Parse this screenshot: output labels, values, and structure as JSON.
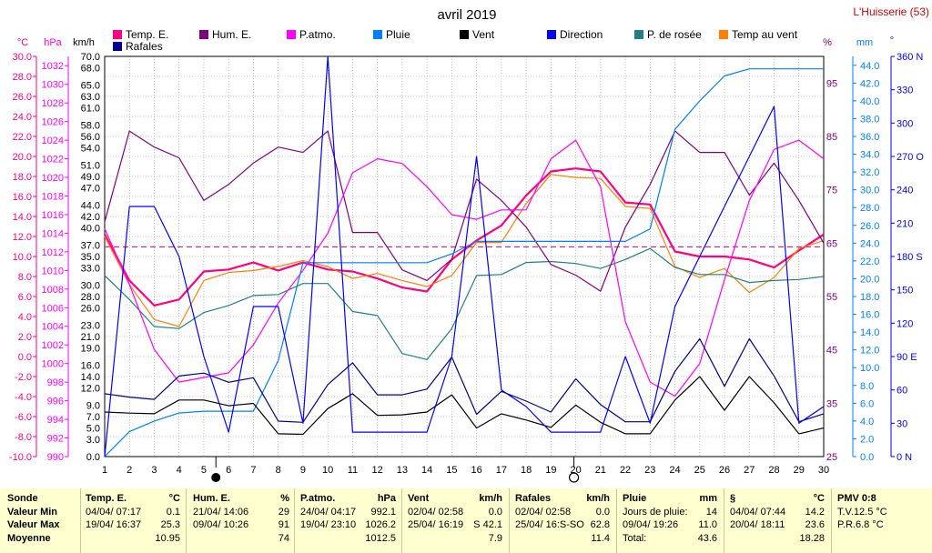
{
  "header": {
    "title": "avril 2019",
    "station": "L'Huisserie (53)"
  },
  "axes": {
    "temp_unit": "°C",
    "hpa_unit": "hPa",
    "kmh_unit": "km/h",
    "hum_unit": "%",
    "mm_unit": "mm",
    "deg_unit": "°",
    "temp_ticks": [
      "30.0",
      "28.0",
      "26.0",
      "24.0",
      "22.0",
      "20.0",
      "18.0",
      "16.0",
      "14.0",
      "12.0",
      "10.0",
      "8.0",
      "6.0",
      "4.0",
      "2.0",
      "0.0",
      "-2.0",
      "-4.0",
      "-6.0",
      "-8.0",
      "-10.0"
    ],
    "hpa_ticks": [
      "1032",
      "1030",
      "1028",
      "1026",
      "1024",
      "1022",
      "1020",
      "1018",
      "1016",
      "1014",
      "1012",
      "1010",
      "1008",
      "1006",
      "1004",
      "1002",
      "1000",
      "998",
      "996",
      "994",
      "992",
      "990"
    ],
    "kmh_ticks": [
      "70.0",
      "68.0",
      "65.0",
      "63.0",
      "61.0",
      "58.0",
      "56.0",
      "54.0",
      "51.0",
      "49.0",
      "47.0",
      "44.0",
      "42.0",
      "40.0",
      "37.0",
      "35.0",
      "33.0",
      "30.0",
      "28.0",
      "26.0",
      "23.0",
      "21.0",
      "19.0",
      "16.0",
      "14.0",
      "12.0",
      "9.0",
      "7.0",
      "5.0",
      "3.0",
      "0.0"
    ],
    "hum_ticks": [
      "95",
      "85",
      "75",
      "65",
      "55",
      "45",
      "35",
      "25"
    ],
    "mm_ticks": [
      "44.0",
      "42.0",
      "40.0",
      "38.0",
      "36.0",
      "34.0",
      "32.0",
      "30.0",
      "28.0",
      "26.0",
      "24.0",
      "22.0",
      "20.0",
      "18.0",
      "16.0",
      "14.0",
      "12.0",
      "10.0",
      "8.0",
      "6.0",
      "4.0",
      "2.0",
      "0.0"
    ],
    "dir_ticks": [
      "360 N",
      "330",
      "300",
      "270 O",
      "240",
      "210",
      "180 S",
      "150",
      "120",
      "90 E",
      "60",
      "30",
      "0 N"
    ],
    "x_ticks": [
      "1",
      "2",
      "3",
      "4",
      "5",
      "6",
      "7",
      "8",
      "9",
      "10",
      "11",
      "12",
      "13",
      "14",
      "15",
      "16",
      "17",
      "18",
      "19",
      "20",
      "21",
      "22",
      "23",
      "24",
      "25",
      "26",
      "27",
      "28",
      "29",
      "30"
    ]
  },
  "moon_phases": {
    "new_moon_day": 6,
    "full_moon_day": 20
  },
  "colors": {
    "temp": "#ff0080",
    "hum": "#800080",
    "patmo": "#ff00ff",
    "pluie": "#0080ff",
    "vent": "#000000",
    "direction": "#0000ff",
    "rosee": "#208080",
    "tempvent": "#ff8000",
    "rafales": "#000090",
    "mean": "#ff0080"
  },
  "chart_data": {
    "type": "line",
    "title": "avril 2019",
    "x": [
      1,
      2,
      3,
      4,
      5,
      6,
      7,
      8,
      9,
      10,
      11,
      12,
      13,
      14,
      15,
      16,
      17,
      18,
      19,
      20,
      21,
      22,
      23,
      24,
      25,
      26,
      27,
      28,
      29,
      30
    ],
    "xlim": [
      1,
      30
    ],
    "ylim_temp": [
      -10,
      30
    ],
    "ylim_hpa": [
      990,
      1033
    ],
    "ylim_kmh": [
      0,
      70
    ],
    "ylim_hum": [
      25,
      100
    ],
    "ylim_mm": [
      0,
      45
    ],
    "ylim_dir": [
      0,
      360
    ],
    "mean_temp_line": 10.95,
    "legend": [
      {
        "key": "temp",
        "name": "Temp. E."
      },
      {
        "key": "hum",
        "name": "Hum. E."
      },
      {
        "key": "patmo",
        "name": "P.atmo."
      },
      {
        "key": "pluie",
        "name": "Pluie"
      },
      {
        "key": "vent",
        "name": "Vent"
      },
      {
        "key": "direction",
        "name": "Direction"
      },
      {
        "key": "rosee",
        "name": "P. de rosée"
      },
      {
        "key": "tempvent",
        "name": "Temp au vent"
      },
      {
        "key": "rafales",
        "name": "Rafales"
      }
    ],
    "series": [
      {
        "key": "temp",
        "axis": "temp",
        "width": 2.2,
        "values": [
          12.2,
          7.6,
          5.1,
          5.7,
          8.5,
          8.7,
          9.4,
          8.6,
          9.4,
          8.7,
          8.5,
          7.8,
          6.9,
          6.5,
          9.7,
          11.6,
          13.1,
          16.1,
          18.5,
          18.8,
          18.5,
          15.4,
          15.2,
          10.5,
          10.0,
          10.0,
          9.7,
          8.9,
          10.6,
          12.2
        ]
      },
      {
        "key": "tempvent",
        "axis": "temp",
        "width": 1.2,
        "values": [
          12.0,
          7.2,
          3.7,
          3.0,
          7.6,
          8.4,
          8.6,
          9.0,
          9.6,
          9.0,
          7.8,
          8.3,
          7.6,
          7.0,
          8.1,
          11.4,
          11.4,
          15.3,
          18.2,
          17.9,
          17.8,
          15.0,
          14.8,
          9.0,
          7.9,
          8.8,
          6.4,
          7.9,
          10.8,
          11.6
        ]
      },
      {
        "key": "rosee",
        "axis": "temp",
        "width": 1.2,
        "values": [
          8.1,
          5.7,
          3.0,
          2.8,
          4.4,
          5.1,
          6.1,
          6.2,
          7.3,
          7.3,
          4.5,
          4.1,
          0.3,
          -0.3,
          2.8,
          8.1,
          8.2,
          9.4,
          9.5,
          9.3,
          8.8,
          9.7,
          10.8,
          8.9,
          8.2,
          8.2,
          7.4,
          7.6,
          7.7,
          8.0
        ]
      },
      {
        "key": "hum",
        "axis": "hum",
        "width": 1.2,
        "values": [
          69,
          86,
          83,
          81,
          73,
          76,
          80,
          83,
          82,
          86,
          67,
          67,
          60,
          58,
          62,
          77,
          73,
          68,
          61,
          59,
          56,
          68,
          76,
          86,
          82,
          82,
          74,
          80,
          73,
          65
        ]
      },
      {
        "key": "patmo",
        "axis": "hpa",
        "width": 1.2,
        "values": [
          1014.5,
          1008.5,
          1001.5,
          998,
          998.5,
          999,
          1002,
          1006.5,
          1010,
          1014,
          1020.5,
          1022,
          1021.5,
          1019,
          1016,
          1015.5,
          1016.5,
          1016.5,
          1022,
          1024,
          1019,
          1004.5,
          998,
          996.5,
          1000,
          1009,
          1017.5,
          1023,
          1024,
          1022
        ]
      },
      {
        "key": "pluie",
        "axis": "mm",
        "width": 1.2,
        "values": [
          0.0,
          2.8,
          4.0,
          4.9,
          5.1,
          5.1,
          5.1,
          10.8,
          21.8,
          21.8,
          21.8,
          21.8,
          21.8,
          21.8,
          22.8,
          24.2,
          24.2,
          24.2,
          24.2,
          24.2,
          24.2,
          24.2,
          25.6,
          36.8,
          40.0,
          42.8,
          43.6,
          43.6,
          43.6,
          43.6
        ]
      },
      {
        "key": "vent",
        "axis": "kmh",
        "width": 1.2,
        "values": [
          7.8,
          7.6,
          7.5,
          9.9,
          9.9,
          8.9,
          9.3,
          4.0,
          3.9,
          8.4,
          11.0,
          7.2,
          7.3,
          7.8,
          10.8,
          5.0,
          7.5,
          6.4,
          5.1,
          9.0,
          6.0,
          4.0,
          4.0,
          9.9,
          14.0,
          8.1,
          14.0,
          9.4,
          4.0,
          5.0
        ]
      },
      {
        "key": "rafales",
        "axis": "kmh",
        "width": 1.2,
        "values": [
          11.0,
          10.4,
          10.0,
          14.1,
          14.6,
          13.0,
          13.8,
          6.2,
          6.0,
          12.6,
          16.4,
          10.8,
          10.8,
          11.8,
          17.4,
          7.4,
          11.4,
          9.7,
          7.8,
          13.6,
          9.1,
          6.1,
          6.1,
          14.9,
          20.6,
          12.3,
          20.6,
          14.1,
          6.1,
          7.5
        ]
      },
      {
        "key": "direction",
        "axis": "dir",
        "width": 1.2,
        "values": [
          0,
          225,
          225,
          180,
          90,
          22,
          135,
          135,
          30,
          360,
          22,
          22,
          22,
          22,
          90,
          270,
          60,
          45,
          22,
          22,
          22,
          90,
          30,
          135,
          180,
          225,
          270,
          315,
          30,
          45
        ]
      }
    ]
  },
  "footer": {
    "sonde": {
      "title": "Sonde",
      "rows": [
        "Valeur Min",
        "Valeur Max",
        "Moyenne"
      ]
    },
    "temp": {
      "title": "Temp. E.",
      "unit": "°C",
      "min_date": "04/04/ 07:17",
      "min_val": "0.1",
      "max_date": "19/04/ 16:37",
      "max_val": "25.3",
      "mean": "10.95"
    },
    "hum": {
      "title": "Hum. E.",
      "unit": "%",
      "min_date": "21/04/ 14:06",
      "min_val": "29",
      "max_date": "09/04/ 10:26",
      "max_val": "91",
      "mean": "74"
    },
    "patmo": {
      "title": "P.atmo.",
      "unit": "hPa",
      "min_date": "24/04/ 04:17",
      "min_val": "992.1",
      "max_date": "19/04/ 23:10",
      "max_val": "1026.2",
      "mean": "1012.5"
    },
    "vent": {
      "title": "Vent",
      "unit": "km/h",
      "min_date": "02/04/ 02:58",
      "min_val": "0.0",
      "max_date": "25/04/ 16:19",
      "max_dir": "S",
      "max_val": "42.1",
      "mean": "7.9"
    },
    "rafales": {
      "title": "Rafales",
      "unit": "km/h",
      "min_date": "02/04/ 02:58",
      "min_val": "0.0",
      "max_date": "25/04/ 16:S-SO",
      "max_val": "62.8",
      "mean": "11.4"
    },
    "pluie": {
      "title": "Pluie",
      "unit": "mm",
      "row1_label": "Jours de pluie:",
      "row1_val": "14",
      "row2_label": "09/04/ 19:26",
      "row2_val": "11.0",
      "row3_label": "Total:",
      "row3_val": "43.6"
    },
    "section": {
      "title": "§",
      "unit": "°C",
      "min_date": "04/04/ 07:44",
      "min_val": "14.2",
      "max_date": "20/04/ 18:11",
      "max_val": "23.6",
      "mean": "18.28"
    },
    "pmv": {
      "title": "PMV 0:8",
      "tv": "T.V.12.5 °C",
      "pr": "P.R.6.8 °C"
    }
  }
}
